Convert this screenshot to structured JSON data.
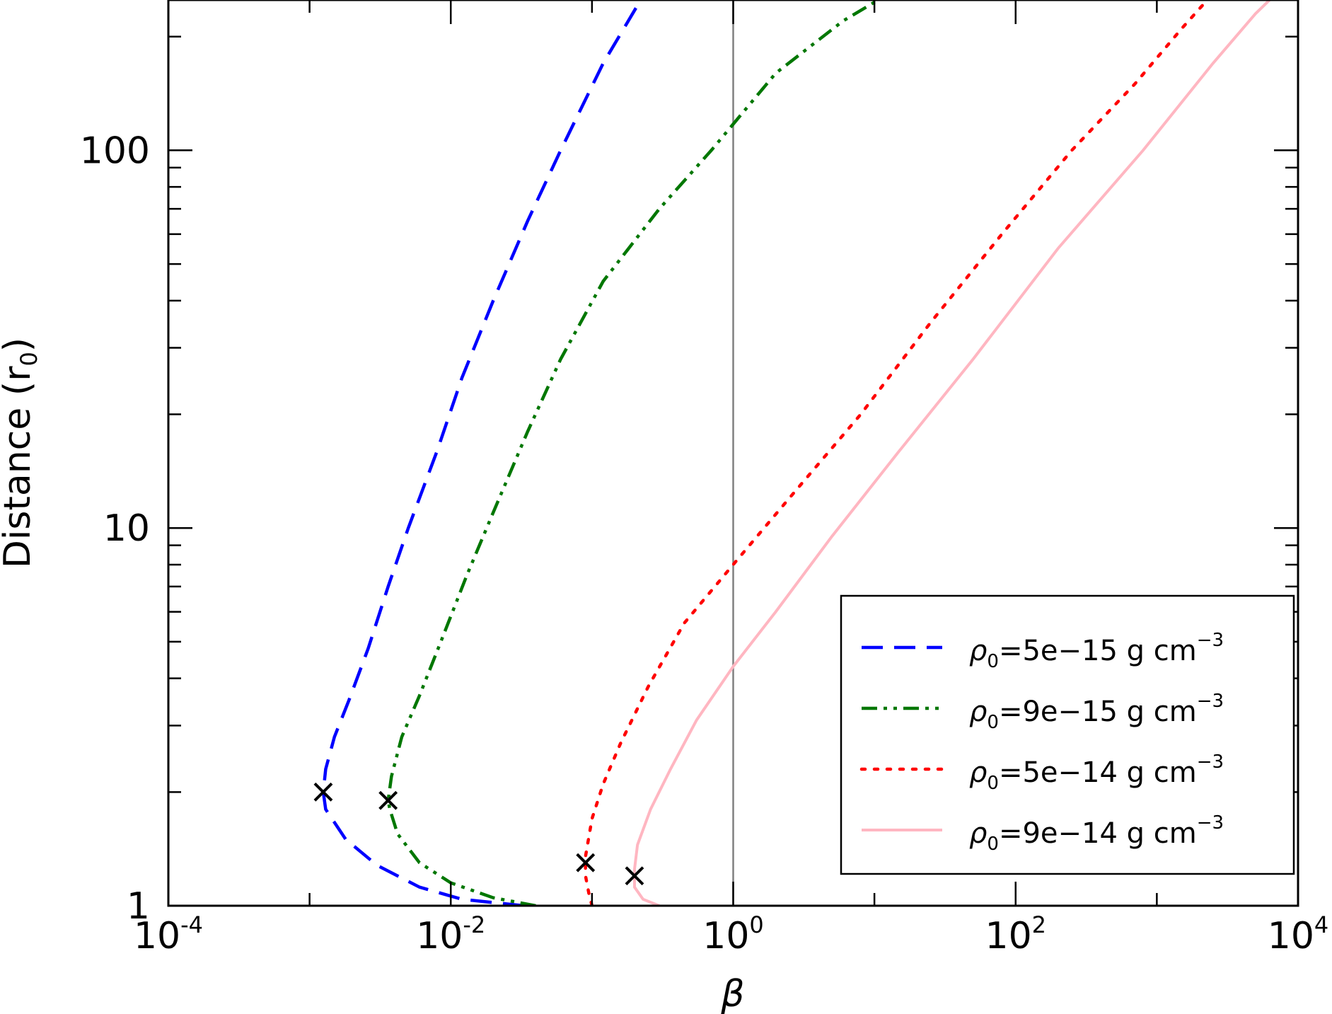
{
  "chart_data": {
    "type": "line",
    "xscale": "log",
    "yscale": "log",
    "xlim": [
      0.0001,
      10000
    ],
    "ylim": [
      1,
      250
    ],
    "xlabel": "β",
    "ylabel_main": "Distance (r",
    "ylabel_sub": "0",
    "ylabel_end": ")",
    "x_ticks": [
      {
        "value": 0.0001,
        "base": "10",
        "exp": "-4"
      },
      {
        "value": 0.01,
        "base": "10",
        "exp": "-2"
      },
      {
        "value": 1,
        "base": "10",
        "exp": "0"
      },
      {
        "value": 100,
        "base": "10",
        "exp": "2"
      },
      {
        "value": 10000,
        "base": "10",
        "exp": "4"
      }
    ],
    "y_ticks": [
      {
        "value": 1,
        "label": "1"
      },
      {
        "value": 10,
        "label": "10"
      },
      {
        "value": 100,
        "label": "100"
      }
    ],
    "reference_line": {
      "x": 1,
      "color": "#808080"
    },
    "legend_position": "lower-right",
    "series": [
      {
        "name_symbol": "ρ",
        "name_sub": "0",
        "name_text": "=5e−15 g cm",
        "name_sup": "−3",
        "color": "#0000ff",
        "style": "dashed",
        "points": [
          [
            0.033,
            1.0
          ],
          [
            0.012,
            1.04
          ],
          [
            0.006,
            1.12
          ],
          [
            0.003,
            1.28
          ],
          [
            0.0018,
            1.5
          ],
          [
            0.0013,
            1.8
          ],
          [
            0.00125,
            2.0
          ],
          [
            0.0013,
            2.3
          ],
          [
            0.0015,
            2.8
          ],
          [
            0.0019,
            3.5
          ],
          [
            0.0026,
            4.8
          ],
          [
            0.0036,
            7
          ],
          [
            0.005,
            10
          ],
          [
            0.008,
            16
          ],
          [
            0.012,
            25
          ],
          [
            0.02,
            40
          ],
          [
            0.035,
            65
          ],
          [
            0.06,
            100
          ],
          [
            0.12,
            170
          ],
          [
            0.25,
            270
          ],
          [
            0.55,
            400
          ]
        ],
        "marker": {
          "x": 0.00125,
          "y": 2.0
        }
      },
      {
        "name_symbol": "ρ",
        "name_sub": "0",
        "name_text": "=9e−15 g cm",
        "name_sup": "−3",
        "color": "#007700",
        "style": "dashdot",
        "points": [
          [
            0.04,
            1.0
          ],
          [
            0.02,
            1.05
          ],
          [
            0.01,
            1.15
          ],
          [
            0.006,
            1.3
          ],
          [
            0.0042,
            1.55
          ],
          [
            0.0037,
            1.8
          ],
          [
            0.0036,
            1.9
          ],
          [
            0.0038,
            2.2
          ],
          [
            0.0045,
            2.8
          ],
          [
            0.006,
            3.6
          ],
          [
            0.0085,
            5
          ],
          [
            0.013,
            7.5
          ],
          [
            0.02,
            11
          ],
          [
            0.035,
            18
          ],
          [
            0.06,
            28
          ],
          [
            0.12,
            45
          ],
          [
            0.3,
            70
          ],
          [
            0.7,
            100
          ],
          [
            2,
            160
          ],
          [
            6,
            220
          ],
          [
            15,
            270
          ]
        ],
        "marker": {
          "x": 0.0036,
          "y": 1.9
        }
      },
      {
        "name_symbol": "ρ",
        "name_sub": "0",
        "name_text": "=5e−14 g cm",
        "name_sup": "−3",
        "color": "#ff0000",
        "style": "dotted",
        "points": [
          [
            0.1,
            1.0
          ],
          [
            0.095,
            1.08
          ],
          [
            0.09,
            1.2
          ],
          [
            0.09,
            1.35
          ],
          [
            0.1,
            1.7
          ],
          [
            0.12,
            2.1
          ],
          [
            0.16,
            2.7
          ],
          [
            0.25,
            3.8
          ],
          [
            0.45,
            5.6
          ],
          [
            1,
            8
          ],
          [
            2.5,
            12
          ],
          [
            8,
            20
          ],
          [
            25,
            35
          ],
          [
            80,
            60
          ],
          [
            250,
            100
          ],
          [
            700,
            150
          ],
          [
            1500,
            210
          ],
          [
            2500,
            260
          ]
        ],
        "marker": {
          "x": 0.09,
          "y": 1.3
        }
      },
      {
        "name_symbol": "ρ",
        "name_sub": "0",
        "name_text": "=9e−14 g cm",
        "name_sup": "−3",
        "color": "#ffb6c1",
        "style": "solid",
        "points": [
          [
            0.3,
            1.0
          ],
          [
            0.23,
            1.04
          ],
          [
            0.2,
            1.12
          ],
          [
            0.2,
            1.25
          ],
          [
            0.21,
            1.45
          ],
          [
            0.26,
            1.8
          ],
          [
            0.36,
            2.3
          ],
          [
            0.55,
            3.1
          ],
          [
            1,
            4.3
          ],
          [
            2,
            6
          ],
          [
            5,
            9.5
          ],
          [
            15,
            16
          ],
          [
            50,
            28
          ],
          [
            200,
            55
          ],
          [
            800,
            100
          ],
          [
            2500,
            170
          ],
          [
            5000,
            230
          ],
          [
            7000,
            260
          ]
        ],
        "marker": {
          "x": 0.2,
          "y": 1.2
        }
      }
    ]
  }
}
